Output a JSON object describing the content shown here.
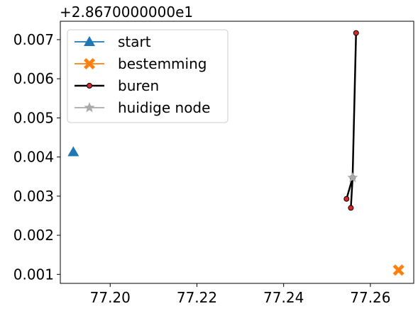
{
  "chart_data": {
    "type": "scatter",
    "offset_text": "+2.8670000000e1",
    "xlim": [
      77.1885,
      77.27
    ],
    "ylim": [
      0.00077,
      0.00747
    ],
    "x_ticks": [
      {
        "value": 77.2,
        "label": "77.20"
      },
      {
        "value": 77.22,
        "label": "77.22"
      },
      {
        "value": 77.24,
        "label": "77.24"
      },
      {
        "value": 77.26,
        "label": "77.26"
      }
    ],
    "y_ticks": [
      {
        "value": 0.001,
        "label": "0.001"
      },
      {
        "value": 0.002,
        "label": "0.002"
      },
      {
        "value": 0.003,
        "label": "0.003"
      },
      {
        "value": 0.004,
        "label": "0.004"
      },
      {
        "value": 0.005,
        "label": "0.005"
      },
      {
        "value": 0.006,
        "label": "0.006"
      },
      {
        "value": 0.007,
        "label": "0.007"
      }
    ],
    "grid": false,
    "legend_position": "top-left",
    "series": [
      {
        "name": "start",
        "marker": "triangle",
        "color": "#1f77b4",
        "line": false,
        "points": [
          {
            "x": 77.1915,
            "y": 0.00413
          }
        ]
      },
      {
        "name": "bestemming",
        "marker": "x",
        "color": "#ff7f0e",
        "line": false,
        "points": [
          {
            "x": 77.2665,
            "y": 0.00111
          }
        ]
      },
      {
        "name": "buren",
        "marker": "circle",
        "color": "#d62728",
        "line_color": "#000000",
        "line": true,
        "points": [
          {
            "x": 77.2567,
            "y": 0.00717
          },
          {
            "x": 77.2559,
            "y": 0.00347
          },
          {
            "x": 77.2555,
            "y": 0.0027
          },
          {
            "x": 77.2559,
            "y": 0.00347
          },
          {
            "x": 77.2545,
            "y": 0.00293
          }
        ]
      },
      {
        "name": "huidige node",
        "marker": "star",
        "color": "#aaaaaa",
        "line": false,
        "points": [
          {
            "x": 77.2559,
            "y": 0.00347
          }
        ]
      }
    ]
  }
}
